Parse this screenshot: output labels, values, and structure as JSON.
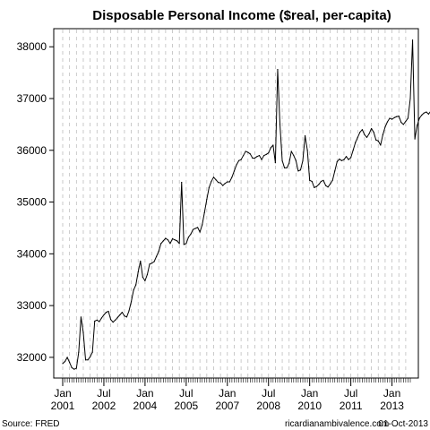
{
  "chart_data": {
    "type": "line",
    "title": "Disposable Personal Income ($real, per-capita)",
    "xlabel": "",
    "ylabel": "",
    "x_range": [
      "2001-01",
      "2013-09"
    ],
    "ylim": [
      31600,
      38350
    ],
    "yticks": [
      32000,
      33000,
      34000,
      35000,
      36000,
      37000,
      38000
    ],
    "xticks": [
      {
        "date": "2001-01",
        "label1": "Jan",
        "label2": "2001"
      },
      {
        "date": "2002-07",
        "label1": "Jul",
        "label2": "2002"
      },
      {
        "date": "2004-01",
        "label1": "Jan",
        "label2": "2004"
      },
      {
        "date": "2005-07",
        "label1": "Jul",
        "label2": "2005"
      },
      {
        "date": "2007-01",
        "label1": "Jan",
        "label2": "2007"
      },
      {
        "date": "2008-07",
        "label1": "Jul",
        "label2": "2008"
      },
      {
        "date": "2010-01",
        "label1": "Jan",
        "label2": "2010"
      },
      {
        "date": "2011-07",
        "label1": "Jul",
        "label2": "2011"
      },
      {
        "date": "2013-01",
        "label1": "Jan",
        "label2": "2013"
      }
    ],
    "grid": true,
    "series": [
      {
        "color": "#000000",
        "start": "2001-01",
        "frequency": "monthly",
        "values": [
          31880,
          31920,
          32000,
          31900,
          31800,
          31770,
          31790,
          32100,
          32780,
          32480,
          31950,
          31950,
          32010,
          32100,
          32700,
          32720,
          32690,
          32760,
          32820,
          32870,
          32890,
          32730,
          32680,
          32720,
          32770,
          32820,
          32870,
          32800,
          32780,
          32900,
          33080,
          33300,
          33400,
          33650,
          33860,
          33550,
          33480,
          33600,
          33800,
          33820,
          33850,
          33950,
          34050,
          34200,
          34250,
          34300,
          34270,
          34200,
          34290,
          34270,
          34250,
          34200,
          35380,
          34180,
          34200,
          34320,
          34380,
          34470,
          34490,
          34510,
          34420,
          34560,
          34800,
          35050,
          35280,
          35400,
          35480,
          35430,
          35380,
          35370,
          35320,
          35360,
          35390,
          35390,
          35480,
          35600,
          35720,
          35800,
          35820,
          35900,
          35980,
          35960,
          35930,
          35850,
          35850,
          35880,
          35900,
          35820,
          35900,
          35920,
          35950,
          36050,
          36100,
          35760,
          37560,
          36500,
          35800,
          35660,
          35660,
          35750,
          35980,
          35900,
          35800,
          35600,
          35620,
          35800,
          36280,
          36000,
          35420,
          35400,
          35280,
          35300,
          35340,
          35400,
          35420,
          35320,
          35290,
          35350,
          35420,
          35600,
          35780,
          35830,
          35800,
          35820,
          35880,
          35820,
          35860,
          36000,
          36150,
          36250,
          36350,
          36400,
          36300,
          36250,
          36320,
          36420,
          36350,
          36200,
          36180,
          36100,
          36300,
          36450,
          36550,
          36620,
          36600,
          36630,
          36650,
          36660,
          36540,
          36500,
          36560,
          36620,
          37000,
          38130,
          36220,
          36480,
          36620,
          36680,
          36720,
          36740,
          36700,
          36760,
          36800
        ]
      }
    ]
  },
  "footer": {
    "source": "Source: FRED",
    "credit": "ricardianambivalence.com",
    "date": "01-Oct-2013"
  }
}
